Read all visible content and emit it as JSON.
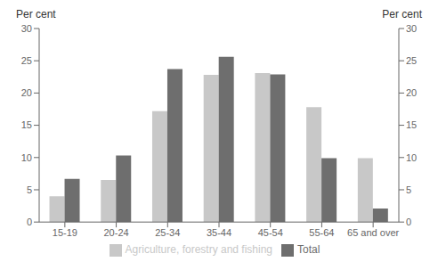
{
  "chart_data": {
    "type": "bar",
    "categories": [
      "15-19",
      "20-24",
      "25-34",
      "35-44",
      "45-54",
      "55-64",
      "65 and over"
    ],
    "series": [
      {
        "name": "Agriculture, forestry and fishing",
        "color": "#c8c8c8",
        "values": [
          4.0,
          6.5,
          17.2,
          22.8,
          23.1,
          17.8,
          9.9
        ]
      },
      {
        "name": "Total",
        "color": "#6e6e6e",
        "values": [
          6.7,
          10.3,
          23.7,
          25.6,
          22.9,
          9.9,
          2.1
        ]
      }
    ],
    "ylabel": "Per cent",
    "y2label": "Per cent",
    "ylim": [
      0,
      30
    ],
    "yticks": [
      0,
      5,
      10,
      15,
      20,
      25,
      30
    ],
    "y2lim": [
      0,
      30
    ],
    "y2ticks": [
      0,
      5,
      10,
      15,
      20,
      25,
      30
    ],
    "legend": "bottom",
    "grid": false
  }
}
